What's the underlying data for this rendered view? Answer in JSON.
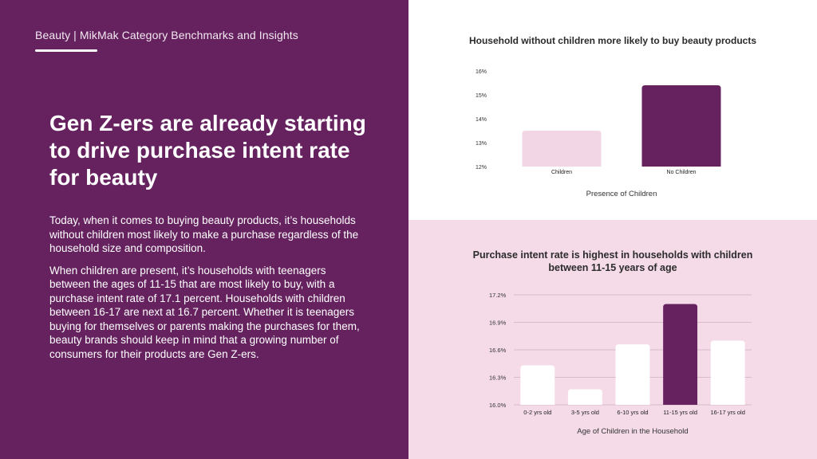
{
  "header": {
    "label": "Beauty | MikMak Category Benchmarks and Insights"
  },
  "headline": "Gen Z-ers are already starting to drive purchase intent rate for beauty",
  "body": {
    "paragraph1": "Today, when it comes to buying beauty products, it’s households without children most likely to make a purchase regardless of the household size and composition.",
    "paragraph2": "When children are present, it’s households with teenagers between the ages of 11-15 that are most likely to buy, with a purchase intent rate of 17.1 percent. Households with children between 16-17 are next at 16.7 percent. Whether it is teenagers buying for themselves or parents making the purchases for them, beauty brands should keep in mind that a growing number of consumers for their products are Gen Z-ers."
  },
  "colors": {
    "brand_purple": "#65225f",
    "light_pink": "#f5dbe8",
    "bar_pink": "#f2d6e5",
    "bar_white": "#ffffff"
  },
  "chart_data": [
    {
      "type": "bar",
      "title": "Household without children more likely to buy beauty products",
      "categories": [
        "Children",
        "No Children"
      ],
      "values": [
        13.5,
        15.4
      ],
      "bar_colors": [
        "#f2d6e5",
        "#65225f"
      ],
      "xlabel": "Presence of Children",
      "ylabel": "",
      "ylim": [
        12,
        16
      ],
      "yticks": [
        12,
        13,
        14,
        15,
        16
      ],
      "ytick_labels": [
        "12%",
        "13%",
        "14%",
        "15%",
        "16%"
      ],
      "grid": false
    },
    {
      "type": "bar",
      "title": "Purchase intent rate is highest in households with children between 11-15 years of age",
      "categories": [
        "0-2 yrs old",
        "3-5 yrs old",
        "6-10 yrs old",
        "11-15 yrs old",
        "16-17 yrs old"
      ],
      "values": [
        16.43,
        16.17,
        16.66,
        17.1,
        16.7
      ],
      "bar_colors": [
        "#ffffff",
        "#ffffff",
        "#ffffff",
        "#65225f",
        "#ffffff"
      ],
      "xlabel": "Age of Children in the Household",
      "ylabel": "",
      "ylim": [
        16.0,
        17.2
      ],
      "yticks": [
        16.0,
        16.3,
        16.6,
        16.9,
        17.2
      ],
      "ytick_labels": [
        "16.0%",
        "16.3%",
        "16.6%",
        "16.9%",
        "17.2%"
      ],
      "grid": true
    }
  ]
}
